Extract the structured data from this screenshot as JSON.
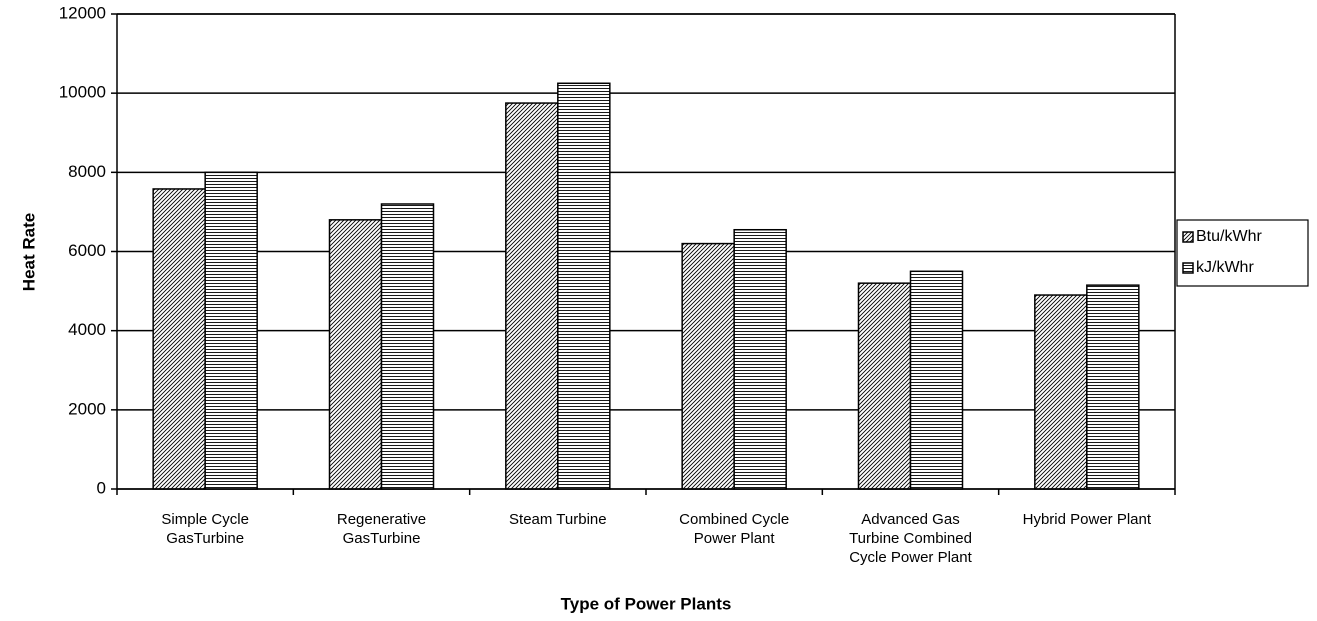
{
  "chart_data": {
    "type": "bar",
    "x_label": "Type of Power Plants",
    "y_label": "Heat Rate",
    "categories": [
      [
        "Simple Cycle",
        "GasTurbine"
      ],
      [
        "Regenerative",
        "GasTurbine"
      ],
      [
        "Steam Turbine"
      ],
      [
        "Combined Cycle",
        "Power Plant"
      ],
      [
        "Advanced Gas",
        "Turbine Combined",
        "Cycle Power Plant"
      ],
      [
        "Hybrid Power Plant"
      ]
    ],
    "series": [
      {
        "name": "Btu/kWhr",
        "color": "#000000",
        "pattern": "diagonal",
        "values": [
          7580,
          6800,
          9750,
          6200,
          5200,
          4900
        ]
      },
      {
        "name": "kJ/kWhr",
        "color": "#000000",
        "pattern": "horizontal",
        "values": [
          8000,
          7200,
          10250,
          6550,
          5500,
          5150
        ]
      }
    ],
    "ylim": [
      0,
      12000
    ],
    "yticks": [
      0,
      2000,
      4000,
      6000,
      8000,
      10000,
      12000
    ],
    "grid": true,
    "legend": "right"
  }
}
